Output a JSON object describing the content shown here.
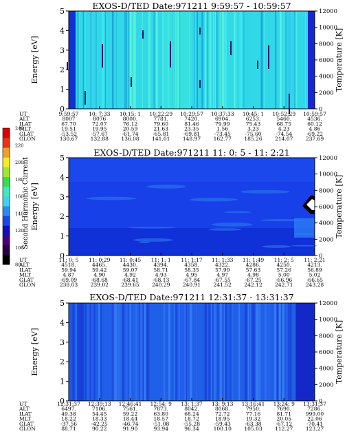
{
  "chart_data": [
    {
      "type": "heatmap",
      "title": "EXOS-D/TED   Date:971211  9:59:57 - 10:59:57",
      "ylabel": "Energy [eV]",
      "y2label": "Temperature [K]",
      "ylim": [
        0,
        5
      ],
      "y2lim": [
        0,
        12000
      ],
      "yticks": [
        "0",
        "1",
        "2",
        "3",
        "4",
        "5"
      ],
      "y2ticks": [
        "0",
        "2000",
        "4000",
        "6000",
        "8000",
        "10000",
        "12000"
      ],
      "base_color": "#30d8e8",
      "table": {
        "labels": [
          "UT",
          "ALT",
          "ILAT",
          "MLT",
          "GLAT",
          "GLON"
        ],
        "columns": [
          [
            "9:59:57",
            "8007",
            "67.70",
            "19.51",
            "-53.52",
            "130.67"
          ],
          [
            "10: 7:33",
            "8076",
            "72.07",
            "19.95",
            "-57.67",
            "132.88"
          ],
          [
            "10:15: 1",
            "8000.",
            "76.12",
            "20.59",
            "-61.74",
            "136.08"
          ],
          [
            "10:22:29",
            "7781.",
            "79.60",
            "21.63",
            "-65.81",
            "141.01"
          ],
          [
            "10:29:57",
            "7420.",
            "81.46",
            "23.35",
            "-69.81",
            "148.97"
          ],
          [
            "10:37:33",
            "6904.",
            "79.99",
            "1.56",
            "-73.45",
            "162.77"
          ],
          [
            "10:45: 1",
            "6253.",
            "75.43",
            "3.23",
            "-75.60",
            "185.26"
          ],
          [
            "10:52:29",
            "5460.",
            "68.75",
            "4.23",
            "-74.54",
            "214.07"
          ],
          [
            "10:59:57",
            "4536.",
            "60.12",
            "4.86",
            "-69.22",
            "237.69"
          ]
        ]
      }
    },
    {
      "type": "heatmap",
      "title": "EXOS-D/TED   Date:971211  11: 0: 5 - 11: 2:21",
      "ylabel": "Energy [eV]",
      "y2label": "Temperature [K]",
      "ylim": [
        0,
        5
      ],
      "y2lim": [
        0,
        12000
      ],
      "yticks": [
        "0",
        "1",
        "2",
        "3",
        "4",
        "5"
      ],
      "y2ticks": [
        "0",
        "2000",
        "4000",
        "6000",
        "8000",
        "10000",
        "12000"
      ],
      "base_color": "#1840e8",
      "colorbar": {
        "label": "Second Harmonic Current",
        "ticks": [
          "80",
          "100",
          "120",
          "140",
          "160",
          "180",
          "200",
          "220",
          "240"
        ]
      },
      "table": {
        "labels": [
          "UT",
          "ALT",
          "ILAT",
          "MLT",
          "GLAT",
          "GLON"
        ],
        "columns": [
          [
            "11: 0: 5",
            "4518.",
            "59.94",
            "4.87",
            "-69.09",
            "238.03"
          ],
          [
            "11: 0:29",
            "4465.",
            "59.42",
            "4.90",
            "-68.68",
            "239.02"
          ],
          [
            "11: 0:45",
            "4430.",
            "59.07",
            "4.92",
            "-68.41",
            "239.65"
          ],
          [
            "11: 1: 1",
            "4394.",
            "58.71",
            "4.93",
            "-68.13",
            "240.29"
          ],
          [
            "11: 1:17",
            "4358.",
            "58.35",
            "4.95",
            "-67.84",
            "240.91"
          ],
          [
            "11: 1:33",
            "4322.",
            "57.99",
            "4.97",
            "-67.55",
            "241.52"
          ],
          [
            "11: 1:49",
            "4286.",
            "57.63",
            "4.98",
            "-67.25",
            "242.12"
          ],
          [
            "11: 2: 5",
            "4250.",
            "57.26",
            "5.00",
            "-66.96",
            "242.71"
          ],
          [
            "11: 2:21",
            "4213.",
            "56.89",
            "5.02",
            "-66.65",
            "243.28"
          ]
        ]
      }
    },
    {
      "type": "heatmap",
      "title": "EXOS-D/TED   Date:971211  12:31:37 - 13:31:37",
      "ylabel": "Energy [eV]",
      "y2label": "Temperature [K]",
      "ylim": [
        0,
        5
      ],
      "y2lim": [
        0,
        12000
      ],
      "yticks": [
        "0",
        "1",
        "2",
        "3",
        "4",
        "5"
      ],
      "y2ticks": [
        "0",
        "2000",
        "4000",
        "6000",
        "8000",
        "10000",
        "12000"
      ],
      "base_color": "#2060e8",
      "table": {
        "labels": [
          "UT",
          "ALT",
          "ILAT",
          "MLT",
          "GLAT",
          "GLON"
        ],
        "columns": [
          [
            "12:31:37",
            "6497.",
            "49.38",
            "18.22",
            "-37.56",
            "88.71"
          ],
          [
            "12:39:13",
            "7106.",
            "54.45",
            "18.33",
            "-42.25",
            "90.22"
          ],
          [
            "12:46:41",
            "7561.",
            "59.22",
            "18.44",
            "-46.74",
            "91.90"
          ],
          [
            "12:54: 9",
            "7873.",
            "63.80",
            "18.57",
            "-51.08",
            "93.94"
          ],
          [
            "13: 1:37",
            "8042.",
            "68.24",
            "18.72",
            "-55.28",
            "96.34"
          ],
          [
            "13: 9:13",
            "8068.",
            "72.72",
            "18.95",
            "-59.43",
            "100.10"
          ],
          [
            "13:16:41",
            "7950.",
            "77.16",
            "19.32",
            "-63.38",
            "105.03"
          ],
          [
            "13:24: 9",
            "7690.",
            "81.71",
            "20.05",
            "-67.12",
            "112.27"
          ],
          [
            "13:31:37",
            "7286.",
            "999.00",
            "22.06",
            "-70.41",
            "123.27"
          ]
        ]
      }
    }
  ]
}
